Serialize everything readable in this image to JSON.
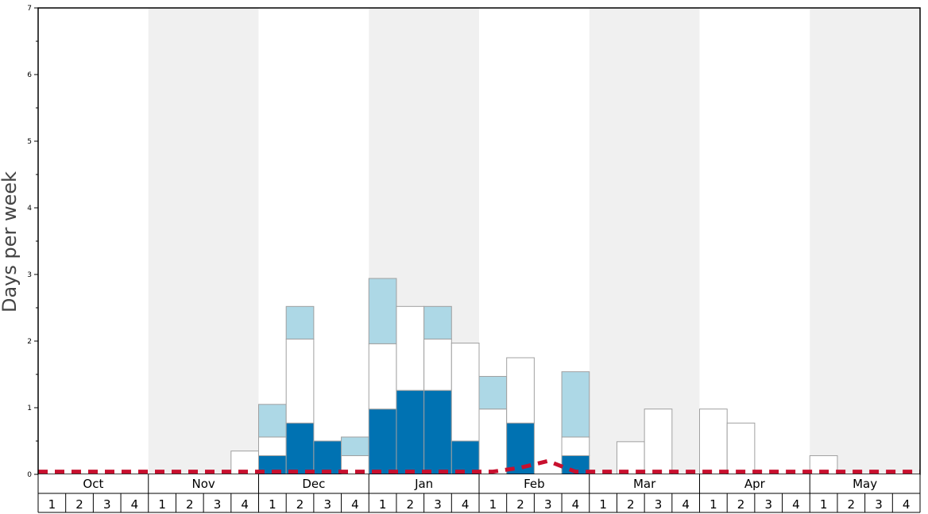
{
  "chart_data": {
    "type": "bar",
    "stacked": true,
    "title": "",
    "xlabel": "",
    "ylabel": "Days per week",
    "ylim": [
      0,
      7
    ],
    "yticks": [
      "0",
      "1",
      "2",
      "3",
      "4",
      "5",
      "6",
      "7"
    ],
    "months": [
      "Oct",
      "Nov",
      "Dec",
      "Jan",
      "Feb",
      "Mar",
      "Apr",
      "May"
    ],
    "week_labels": [
      "1",
      "2",
      "3",
      "4"
    ],
    "categories": [
      "Oct 1",
      "Oct 2",
      "Oct 3",
      "Oct 4",
      "Nov 1",
      "Nov 2",
      "Nov 3",
      "Nov 4",
      "Dec 1",
      "Dec 2",
      "Dec 3",
      "Dec 4",
      "Jan 1",
      "Jan 2",
      "Jan 3",
      "Jan 4",
      "Feb 1",
      "Feb 2",
      "Feb 3",
      "Feb 4",
      "Mar 1",
      "Mar 2",
      "Mar 3",
      "Mar 4",
      "Apr 1",
      "Apr 2",
      "Apr 3",
      "Apr 4",
      "May 1",
      "May 2",
      "May 3",
      "May 4"
    ],
    "series": [
      {
        "color": "#0072b2",
        "values": [
          0,
          0,
          0,
          0,
          0,
          0,
          0,
          0,
          0.28,
          0.77,
          0.5,
          0,
          0.98,
          1.26,
          1.26,
          0.5,
          0,
          0.77,
          0,
          0.28,
          0,
          0,
          0,
          0,
          0,
          0,
          0,
          0,
          0,
          0,
          0,
          0
        ]
      },
      {
        "color": "#ffffff",
        "values": [
          0,
          0,
          0,
          0,
          0,
          0,
          0,
          0.35,
          0.28,
          1.26,
          0,
          0.28,
          0.98,
          1.26,
          0.77,
          1.47,
          0.98,
          0.98,
          0,
          0.28,
          0,
          0.49,
          0.98,
          0,
          0.98,
          0.77,
          0,
          0,
          0.28,
          0,
          0,
          0
        ]
      },
      {
        "color": "#add8e6",
        "values": [
          0,
          0,
          0,
          0,
          0,
          0,
          0,
          0,
          0.49,
          0.49,
          0,
          0.28,
          0.98,
          0,
          0.49,
          0,
          0.49,
          0,
          0,
          0.98,
          0,
          0,
          0,
          0,
          0,
          0,
          0,
          0,
          0,
          0,
          0,
          0
        ]
      }
    ],
    "dashed_line": {
      "color": "#c8102e",
      "values": [
        0.04,
        0.04,
        0.04,
        0.04,
        0.04,
        0.04,
        0.04,
        0.04,
        0.04,
        0.04,
        0.04,
        0.04,
        0.04,
        0.04,
        0.04,
        0.04,
        0.04,
        0.1,
        0.2,
        0.04,
        0.04,
        0.04,
        0.04,
        0.04,
        0.04,
        0.04,
        0.04,
        0.04,
        0.04,
        0.04,
        0.04,
        0.04
      ]
    },
    "shaded_months": [
      "Nov",
      "Jan",
      "Mar",
      "May"
    ],
    "shade_color": "#f0f0f0",
    "grid": false,
    "legend": "none"
  }
}
